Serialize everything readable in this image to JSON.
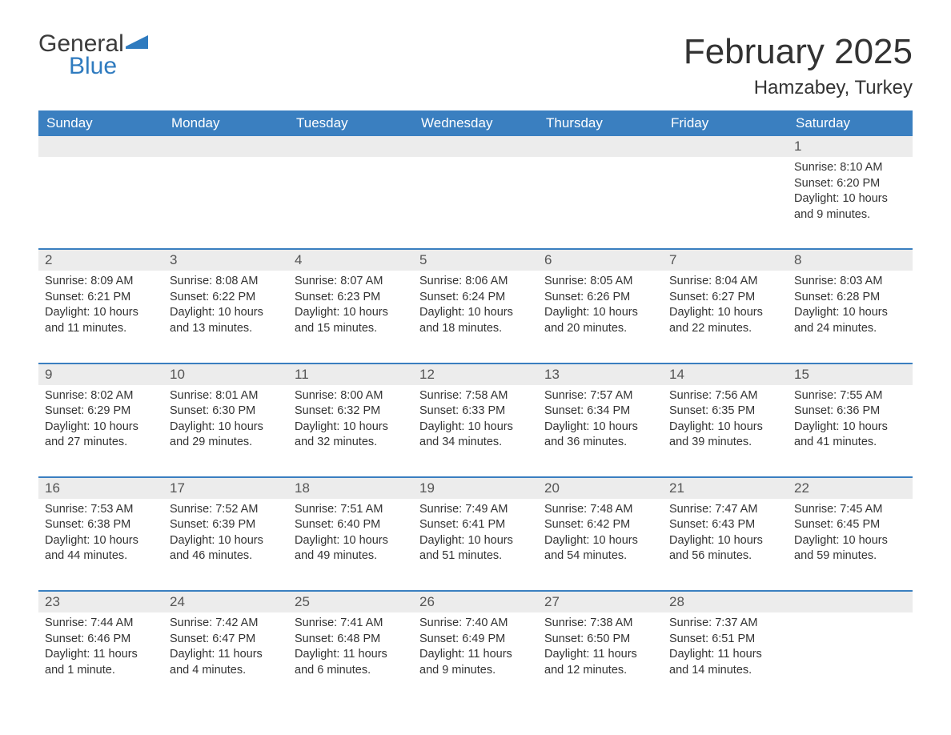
{
  "brand": {
    "line1": "General",
    "line2": "Blue",
    "flag_color": "#2f7bbf"
  },
  "title": "February 2025",
  "location": "Hamzabey, Turkey",
  "colors": {
    "header_bg": "#3a7fc0",
    "header_text": "#ffffff",
    "daynum_bg": "#ececec",
    "week_border": "#3a7fc0",
    "body_text": "#333333",
    "background": "#ffffff"
  },
  "typography": {
    "month_title_fontsize": 44,
    "location_fontsize": 24,
    "header_fontsize": 17,
    "daynum_fontsize": 17,
    "body_fontsize": 14.5
  },
  "day_headers": [
    "Sunday",
    "Monday",
    "Tuesday",
    "Wednesday",
    "Thursday",
    "Friday",
    "Saturday"
  ],
  "labels": {
    "sunrise": "Sunrise:",
    "sunset": "Sunset:",
    "daylight": "Daylight:"
  },
  "weeks": [
    [
      {
        "day": "",
        "sunrise": "",
        "sunset": "",
        "daylight": ""
      },
      {
        "day": "",
        "sunrise": "",
        "sunset": "",
        "daylight": ""
      },
      {
        "day": "",
        "sunrise": "",
        "sunset": "",
        "daylight": ""
      },
      {
        "day": "",
        "sunrise": "",
        "sunset": "",
        "daylight": ""
      },
      {
        "day": "",
        "sunrise": "",
        "sunset": "",
        "daylight": ""
      },
      {
        "day": "",
        "sunrise": "",
        "sunset": "",
        "daylight": ""
      },
      {
        "day": "1",
        "sunrise": "8:10 AM",
        "sunset": "6:20 PM",
        "daylight": "10 hours and 9 minutes."
      }
    ],
    [
      {
        "day": "2",
        "sunrise": "8:09 AM",
        "sunset": "6:21 PM",
        "daylight": "10 hours and 11 minutes."
      },
      {
        "day": "3",
        "sunrise": "8:08 AM",
        "sunset": "6:22 PM",
        "daylight": "10 hours and 13 minutes."
      },
      {
        "day": "4",
        "sunrise": "8:07 AM",
        "sunset": "6:23 PM",
        "daylight": "10 hours and 15 minutes."
      },
      {
        "day": "5",
        "sunrise": "8:06 AM",
        "sunset": "6:24 PM",
        "daylight": "10 hours and 18 minutes."
      },
      {
        "day": "6",
        "sunrise": "8:05 AM",
        "sunset": "6:26 PM",
        "daylight": "10 hours and 20 minutes."
      },
      {
        "day": "7",
        "sunrise": "8:04 AM",
        "sunset": "6:27 PM",
        "daylight": "10 hours and 22 minutes."
      },
      {
        "day": "8",
        "sunrise": "8:03 AM",
        "sunset": "6:28 PM",
        "daylight": "10 hours and 24 minutes."
      }
    ],
    [
      {
        "day": "9",
        "sunrise": "8:02 AM",
        "sunset": "6:29 PM",
        "daylight": "10 hours and 27 minutes."
      },
      {
        "day": "10",
        "sunrise": "8:01 AM",
        "sunset": "6:30 PM",
        "daylight": "10 hours and 29 minutes."
      },
      {
        "day": "11",
        "sunrise": "8:00 AM",
        "sunset": "6:32 PM",
        "daylight": "10 hours and 32 minutes."
      },
      {
        "day": "12",
        "sunrise": "7:58 AM",
        "sunset": "6:33 PM",
        "daylight": "10 hours and 34 minutes."
      },
      {
        "day": "13",
        "sunrise": "7:57 AM",
        "sunset": "6:34 PM",
        "daylight": "10 hours and 36 minutes."
      },
      {
        "day": "14",
        "sunrise": "7:56 AM",
        "sunset": "6:35 PM",
        "daylight": "10 hours and 39 minutes."
      },
      {
        "day": "15",
        "sunrise": "7:55 AM",
        "sunset": "6:36 PM",
        "daylight": "10 hours and 41 minutes."
      }
    ],
    [
      {
        "day": "16",
        "sunrise": "7:53 AM",
        "sunset": "6:38 PM",
        "daylight": "10 hours and 44 minutes."
      },
      {
        "day": "17",
        "sunrise": "7:52 AM",
        "sunset": "6:39 PM",
        "daylight": "10 hours and 46 minutes."
      },
      {
        "day": "18",
        "sunrise": "7:51 AM",
        "sunset": "6:40 PM",
        "daylight": "10 hours and 49 minutes."
      },
      {
        "day": "19",
        "sunrise": "7:49 AM",
        "sunset": "6:41 PM",
        "daylight": "10 hours and 51 minutes."
      },
      {
        "day": "20",
        "sunrise": "7:48 AM",
        "sunset": "6:42 PM",
        "daylight": "10 hours and 54 minutes."
      },
      {
        "day": "21",
        "sunrise": "7:47 AM",
        "sunset": "6:43 PM",
        "daylight": "10 hours and 56 minutes."
      },
      {
        "day": "22",
        "sunrise": "7:45 AM",
        "sunset": "6:45 PM",
        "daylight": "10 hours and 59 minutes."
      }
    ],
    [
      {
        "day": "23",
        "sunrise": "7:44 AM",
        "sunset": "6:46 PM",
        "daylight": "11 hours and 1 minute."
      },
      {
        "day": "24",
        "sunrise": "7:42 AM",
        "sunset": "6:47 PM",
        "daylight": "11 hours and 4 minutes."
      },
      {
        "day": "25",
        "sunrise": "7:41 AM",
        "sunset": "6:48 PM",
        "daylight": "11 hours and 6 minutes."
      },
      {
        "day": "26",
        "sunrise": "7:40 AM",
        "sunset": "6:49 PM",
        "daylight": "11 hours and 9 minutes."
      },
      {
        "day": "27",
        "sunrise": "7:38 AM",
        "sunset": "6:50 PM",
        "daylight": "11 hours and 12 minutes."
      },
      {
        "day": "28",
        "sunrise": "7:37 AM",
        "sunset": "6:51 PM",
        "daylight": "11 hours and 14 minutes."
      },
      {
        "day": "",
        "sunrise": "",
        "sunset": "",
        "daylight": ""
      }
    ]
  ]
}
